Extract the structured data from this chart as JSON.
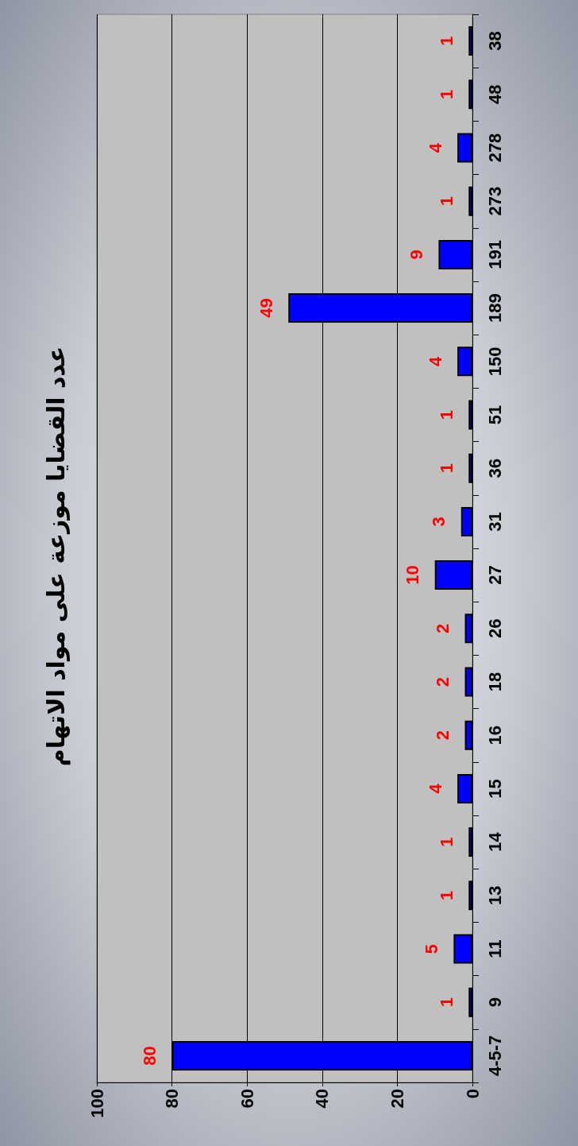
{
  "chart_data": {
    "type": "bar",
    "orientation": "horizontal",
    "title": "عدد القضايا موزعة على مواد الاتهام",
    "categories": [
      "38",
      "48",
      "278",
      "273",
      "191",
      "189",
      "150",
      "51",
      "36",
      "31",
      "27",
      "26",
      "18",
      "16",
      "15",
      "14",
      "13",
      "11",
      "9",
      "4-5-7"
    ],
    "values": [
      1,
      1,
      4,
      1,
      9,
      49,
      4,
      1,
      1,
      3,
      10,
      2,
      2,
      2,
      4,
      1,
      1,
      5,
      1,
      80
    ],
    "color": "#0000ff",
    "data_labels": true,
    "xlim": [
      100,
      0
    ],
    "xticks": [
      100,
      80,
      60,
      40,
      20,
      0
    ],
    "grid": "x"
  }
}
